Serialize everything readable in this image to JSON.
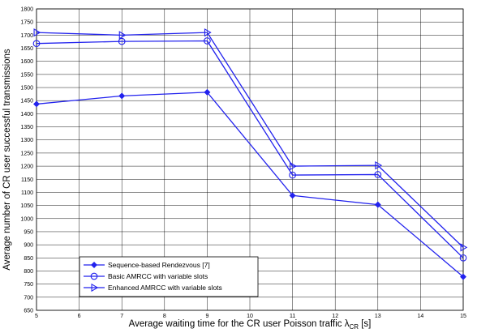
{
  "chart_data": {
    "type": "line",
    "title": "",
    "xlabel": "Average waiting time for the CR user Poisson traffic λ",
    "xlabel_subscript": "CR",
    "xlabel_unit": " [s]",
    "ylabel": "Average number of CR user successful transmissions",
    "xlim": [
      5,
      15
    ],
    "ylim": [
      650,
      1800
    ],
    "xticks": [
      5,
      6,
      7,
      8,
      9,
      10,
      11,
      12,
      13,
      14,
      15
    ],
    "yticks": [
      650,
      700,
      750,
      800,
      850,
      900,
      950,
      1000,
      1050,
      1100,
      1150,
      1200,
      1250,
      1300,
      1350,
      1400,
      1450,
      1500,
      1550,
      1600,
      1650,
      1700,
      1750,
      1800
    ],
    "grid": true,
    "legend_position": "bottom-left",
    "x": [
      5,
      7,
      9,
      11,
      13,
      15
    ],
    "series": [
      {
        "name": "Sequence-based Rendezvous [7]",
        "marker": "diamond",
        "color": "#2222ee",
        "values": [
          1437,
          1468,
          1482,
          1088,
          1053,
          778
        ]
      },
      {
        "name": "Basic AMRCC with variable slots",
        "marker": "circle",
        "color": "#2222ee",
        "values": [
          1668,
          1676,
          1678,
          1166,
          1168,
          850
        ]
      },
      {
        "name": "Enhanced AMRCC with variable slots",
        "marker": "triangle-right",
        "color": "#2222ee",
        "values": [
          1710,
          1700,
          1710,
          1200,
          1203,
          890
        ]
      }
    ]
  }
}
